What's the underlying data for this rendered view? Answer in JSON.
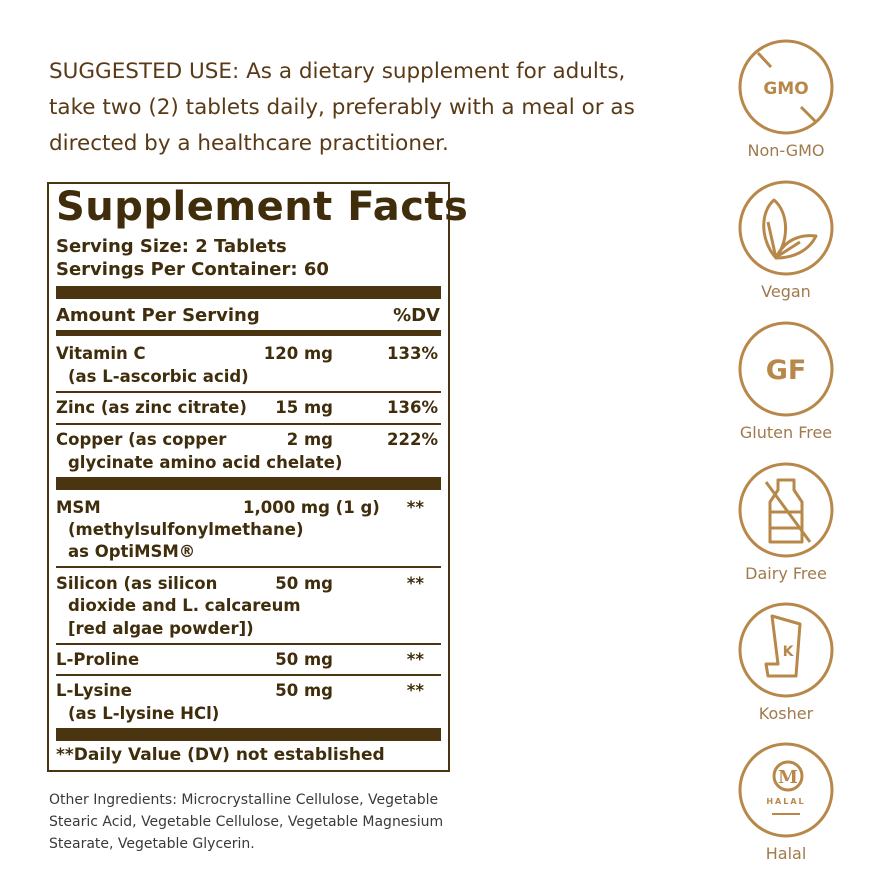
{
  "suggested_use": "SUGGESTED USE: As a dietary supplement for adults, take two (2) tablets daily, preferably with a meal or as directed by a healthcare practitioner.",
  "facts": {
    "title": "Supplement Facts",
    "serving_size": "Serving Size: 2 Tablets",
    "servings_per_container": "Servings Per Container: 60",
    "amount_header": "Amount Per Serving",
    "dv_header": "%DV",
    "rows": [
      {
        "name": "Vitamin C",
        "sub": "(as L-ascorbic acid)",
        "amount": "120 mg",
        "dv": "133%"
      },
      {
        "name": "Zinc (as zinc citrate)",
        "amount": "15 mg",
        "dv": "136%"
      },
      {
        "name": "Copper (as copper",
        "sub": "glycinate amino acid chelate)",
        "amount": "2 mg",
        "dv": "222%"
      },
      {
        "name": "MSM",
        "sub": "(methylsulfonylmethane)",
        "sub2": "as OptiMSM®",
        "amount": "1,000 mg (1 g)",
        "dv": "**"
      },
      {
        "name": "Silicon (as silicon",
        "sub": "dioxide and L. calcareum",
        "sub2": "[red algae powder])",
        "amount": "50 mg",
        "dv": "**"
      },
      {
        "name": "L-Proline",
        "amount": "50 mg",
        "dv": "**"
      },
      {
        "name": "L-Lysine",
        "sub": "(as L-lysine HCl)",
        "amount": "50 mg",
        "dv": "**"
      }
    ],
    "footnote": "**Daily Value (DV) not established"
  },
  "other_ingredients": "Other Ingredients: Microcrystalline Cellulose, Vegetable Stearic Acid, Vegetable Cellulose, Vegetable Magnesium Stearate, Vegetable Glycerin.",
  "badges": [
    {
      "icon": "non-gmo-icon",
      "label": "Non-GMO",
      "glyph": "GMO"
    },
    {
      "icon": "leaf-icon",
      "label": "Vegan"
    },
    {
      "icon": "gluten-free-icon",
      "label": "Gluten Free",
      "glyph": "GF"
    },
    {
      "icon": "milk-bottle-icon",
      "label": "Dairy Free"
    },
    {
      "icon": "kosher-icon",
      "label": "Kosher",
      "glyph": "K"
    },
    {
      "icon": "halal-icon",
      "label": "Halal",
      "glyph": "M",
      "glyph2": "HALAL"
    }
  ],
  "colors": {
    "text": "#3f2d0c",
    "icon": "#b8884a",
    "heading": "#5a3a16"
  }
}
